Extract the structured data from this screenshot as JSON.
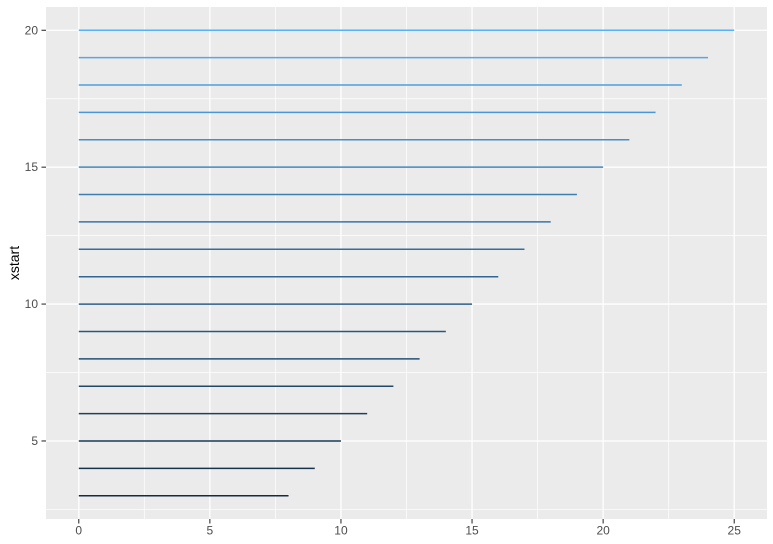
{
  "chart_data": {
    "type": "segment",
    "title": "",
    "xlabel": "",
    "ylabel": "xstart",
    "legend": "none",
    "grid": true,
    "xlim": [
      -1.25,
      26.25
    ],
    "ylim": [
      2.15,
      20.85
    ],
    "x_ticks": [
      0,
      5,
      10,
      15,
      20,
      25
    ],
    "y_ticks": [
      5,
      10,
      15,
      20
    ],
    "x_minor": [
      2.5,
      7.5,
      12.5,
      17.5,
      22.5
    ],
    "y_minor": [
      2.5,
      7.5,
      12.5,
      17.5
    ],
    "segments": [
      {
        "ystart": 20,
        "x0": 0,
        "x1": 25
      },
      {
        "ystart": 19,
        "x0": 0,
        "x1": 24
      },
      {
        "ystart": 18,
        "x0": 0,
        "x1": 23
      },
      {
        "ystart": 17,
        "x0": 0,
        "x1": 22
      },
      {
        "ystart": 16,
        "x0": 0,
        "x1": 21
      },
      {
        "ystart": 15,
        "x0": 0,
        "x1": 20
      },
      {
        "ystart": 14,
        "x0": 0,
        "x1": 19
      },
      {
        "ystart": 13,
        "x0": 0,
        "x1": 18
      },
      {
        "ystart": 12,
        "x0": 0,
        "x1": 17
      },
      {
        "ystart": 11,
        "x0": 0,
        "x1": 16
      },
      {
        "ystart": 10,
        "x0": 0,
        "x1": 15
      },
      {
        "ystart": 9,
        "x0": 0,
        "x1": 14
      },
      {
        "ystart": 8,
        "x0": 0,
        "x1": 13
      },
      {
        "ystart": 7,
        "x0": 0,
        "x1": 12
      },
      {
        "ystart": 6,
        "x0": 0,
        "x1": 11
      },
      {
        "ystart": 5,
        "x0": 0,
        "x1": 10
      },
      {
        "ystart": 4,
        "x0": 0,
        "x1": 9
      },
      {
        "ystart": 3,
        "x0": 0,
        "x1": 8
      }
    ],
    "color_scale": {
      "type": "gradient",
      "low": "#132B43",
      "high": "#56B1F7",
      "maps_to": "ystart",
      "domain": [
        3,
        20
      ]
    }
  },
  "colors": {
    "outer_bg": "#FFFFFF",
    "panel_bg": "#EBEBEB",
    "grid": "#FFFFFF",
    "tick_mark": "#333333",
    "tick_label": "#4D4D4D",
    "axis_title": "#000000"
  }
}
